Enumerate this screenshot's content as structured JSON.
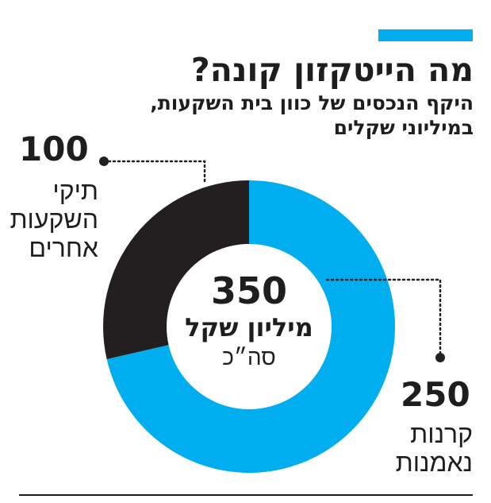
{
  "header": {
    "title": "מה הייטקזון קונה?",
    "subtitle": "היקף הנכסים של כוון בית השקעות, במיליוני שקלים"
  },
  "center": {
    "total": "350",
    "unit": "מיליון שקל",
    "caption": "סה״כ"
  },
  "labels": {
    "left_value": "100",
    "left_name": "תיקי השקעות אחרים",
    "right_value": "250",
    "right_name": "קרנות נאמנות"
  },
  "colors": {
    "accent": "#00adef",
    "dark": "#231f20",
    "rule": "#1e1e1e"
  },
  "chart_data": {
    "type": "pie",
    "title": "מה הייטקזון קונה?",
    "subtitle": "היקף הנכסים של כוון בית השקעות, במיליוני שקלים",
    "unit": "מיליוני שקלים",
    "total": 350,
    "slices": [
      {
        "label": "קרנות נאמנות",
        "value": 250,
        "color": "#00adef"
      },
      {
        "label": "תיקי השקעות אחרים",
        "value": 100,
        "color": "#231f20"
      }
    ]
  }
}
